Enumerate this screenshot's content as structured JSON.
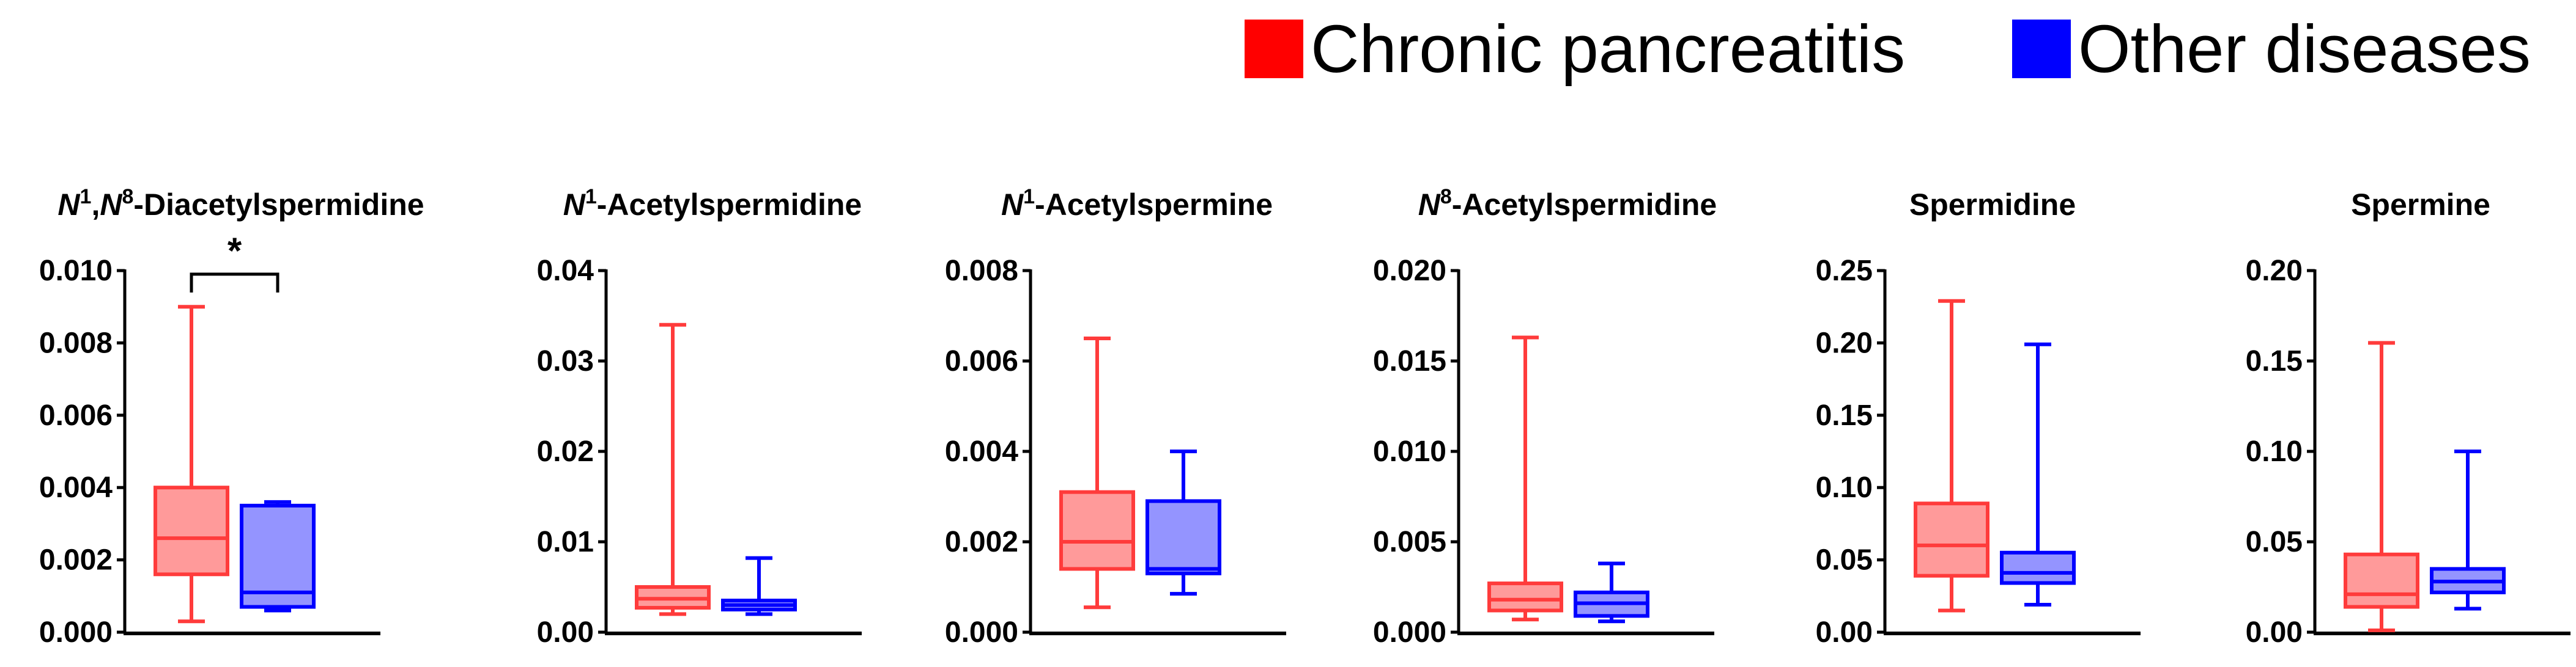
{
  "legend": [
    {
      "label": "Chronic pancreatitis",
      "stroke": "#ff3b3b",
      "fill": "#ff0000"
    },
    {
      "label": "Other diseases",
      "stroke": "#0000ff",
      "fill": "#0000ff"
    }
  ],
  "chart_data": [
    {
      "type": "boxplot",
      "title": {
        "italic": "N",
        "sup1": "1",
        "sep": ",",
        "italic2": "N",
        "sup2": "8",
        "rest": "-Diacetylspermidine"
      },
      "ylim": [
        0,
        0.01
      ],
      "yticks": [
        "0.000",
        "0.002",
        "0.004",
        "0.006",
        "0.008",
        "0.010"
      ],
      "ytick_values": [
        0,
        0.002,
        0.004,
        0.006,
        0.008,
        0.01
      ],
      "categories": [
        "Chronic pancreatitis",
        "Other diseases"
      ],
      "boxes": [
        {
          "min": 0.0003,
          "q1": 0.0016,
          "median": 0.0026,
          "q3": 0.004,
          "max": 0.009
        },
        {
          "min": 0.0006,
          "q1": 0.0007,
          "median": 0.0011,
          "q3": 0.0035,
          "max": 0.0036
        }
      ],
      "significance": {
        "label": "*",
        "level": 0.0099
      }
    },
    {
      "type": "boxplot",
      "title": {
        "italic": "N",
        "sup1": "1",
        "rest": "-Acetylspermidine"
      },
      "ylim": [
        0,
        0.04
      ],
      "yticks": [
        "0.00",
        "0.01",
        "0.02",
        "0.03",
        "0.04"
      ],
      "ytick_values": [
        0,
        0.01,
        0.02,
        0.03,
        0.04
      ],
      "categories": [
        "Chronic pancreatitis",
        "Other diseases"
      ],
      "boxes": [
        {
          "min": 0.002,
          "q1": 0.0027,
          "median": 0.0037,
          "q3": 0.005,
          "max": 0.034
        },
        {
          "min": 0.002,
          "q1": 0.0025,
          "median": 0.003,
          "q3": 0.0035,
          "max": 0.0082
        }
      ]
    },
    {
      "type": "boxplot",
      "title": {
        "italic": "N",
        "sup1": "1",
        "rest": "-Acetylspermine"
      },
      "ylim": [
        0,
        0.008
      ],
      "yticks": [
        "0.000",
        "0.002",
        "0.004",
        "0.006",
        "0.008"
      ],
      "ytick_values": [
        0,
        0.002,
        0.004,
        0.006,
        0.008
      ],
      "categories": [
        "Chronic pancreatitis",
        "Other diseases"
      ],
      "boxes": [
        {
          "min": 0.00055,
          "q1": 0.0014,
          "median": 0.002,
          "q3": 0.0031,
          "max": 0.0065
        },
        {
          "min": 0.00085,
          "q1": 0.0013,
          "median": 0.0014,
          "q3": 0.0029,
          "max": 0.004
        }
      ]
    },
    {
      "type": "boxplot",
      "title": {
        "italic": "N",
        "sup1": "8",
        "rest": "-Acetylspermidine"
      },
      "ylim": [
        0,
        0.02
      ],
      "yticks": [
        "0.000",
        "0.005",
        "0.010",
        "0.015",
        "0.020"
      ],
      "ytick_values": [
        0,
        0.005,
        0.01,
        0.015,
        0.02
      ],
      "categories": [
        "Chronic pancreatitis",
        "Other diseases"
      ],
      "boxes": [
        {
          "min": 0.0007,
          "q1": 0.0012,
          "median": 0.0018,
          "q3": 0.0027,
          "max": 0.0163
        },
        {
          "min": 0.0006,
          "q1": 0.0009,
          "median": 0.0016,
          "q3": 0.0022,
          "max": 0.0038
        }
      ]
    },
    {
      "type": "boxplot",
      "title": {
        "rest": "Spermidine"
      },
      "ylim": [
        0,
        0.25
      ],
      "yticks": [
        "0.00",
        "0.05",
        "0.10",
        "0.15",
        "0.20",
        "0.25"
      ],
      "ytick_values": [
        0,
        0.05,
        0.1,
        0.15,
        0.2,
        0.25
      ],
      "categories": [
        "Chronic pancreatitis",
        "Other diseases"
      ],
      "boxes": [
        {
          "min": 0.015,
          "q1": 0.039,
          "median": 0.06,
          "q3": 0.089,
          "max": 0.229
        },
        {
          "min": 0.019,
          "q1": 0.034,
          "median": 0.041,
          "q3": 0.055,
          "max": 0.199
        }
      ]
    },
    {
      "type": "boxplot",
      "title": {
        "rest": "Spermine"
      },
      "ylim": [
        0,
        0.2
      ],
      "yticks": [
        "0.00",
        "0.05",
        "0.10",
        "0.15",
        "0.20"
      ],
      "ytick_values": [
        0,
        0.05,
        0.1,
        0.15,
        0.2
      ],
      "categories": [
        "Chronic pancreatitis",
        "Other diseases"
      ],
      "boxes": [
        {
          "min": 0.001,
          "q1": 0.014,
          "median": 0.021,
          "q3": 0.043,
          "max": 0.16
        },
        {
          "min": 0.013,
          "q1": 0.022,
          "median": 0.028,
          "q3": 0.035,
          "max": 0.1
        }
      ]
    }
  ]
}
